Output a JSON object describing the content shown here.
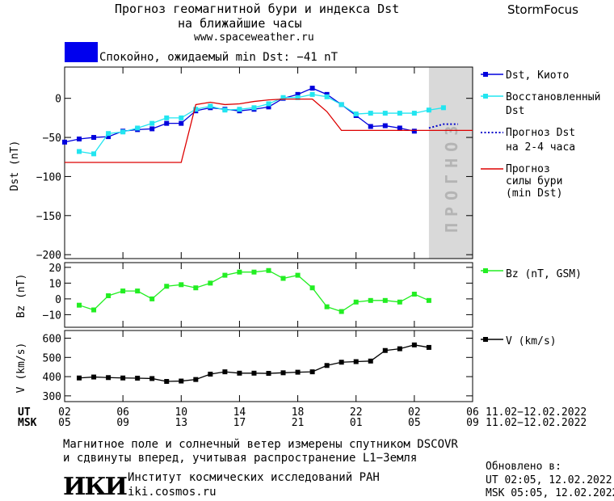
{
  "header": {
    "title_line1": "Прогноз геомагнитной бури и индекса Dst",
    "title_line2": "на ближайшие часы",
    "site": "www.spaceweather.ru",
    "brand": "StormFocus"
  },
  "status": {
    "text": "Спокойно, ожидаемый min Dst: −41 nT",
    "color": "#0000ee"
  },
  "colors": {
    "dst_kyoto": "#0000dd",
    "dst_restored": "#22e5f0",
    "dst_forecast": "#0000cc",
    "storm_forecast": "#dd0000",
    "bz": "#22ee22",
    "v": "#000000",
    "forecast_shade": "#d9d9d9"
  },
  "chart_data": [
    {
      "type": "line",
      "ylabel": "Dst (nT)",
      "ylim": [
        -205,
        40
      ],
      "xlim": [
        2,
        30
      ],
      "yticks": [
        "0",
        "−50",
        "−100",
        "−150",
        "−200"
      ],
      "forecast_region": [
        27,
        30
      ],
      "forecast_label": "ПРОГНОЗ",
      "series": [
        {
          "name": "Dst, Киото",
          "color": "#0000dd",
          "marker": "square",
          "x": [
            2,
            3,
            4,
            5,
            6,
            7,
            8,
            9,
            10,
            11,
            12,
            13,
            14,
            15,
            16,
            17,
            18,
            19,
            20,
            21,
            22,
            23,
            24,
            25,
            26
          ],
          "y": [
            -56,
            -52,
            -50,
            -49,
            -42,
            -40,
            -39,
            -32,
            -32,
            -16,
            -12,
            -14,
            -16,
            -14,
            -11,
            0,
            5,
            13,
            5,
            -8,
            -22,
            -36,
            -35,
            -38,
            -42
          ]
        },
        {
          "name": "Восстановленный Dst",
          "color": "#22e5f0",
          "marker": "square",
          "x": [
            3,
            4,
            5,
            6,
            7,
            8,
            9,
            10,
            11,
            12,
            13,
            14,
            15,
            16,
            17,
            18,
            19,
            20,
            21,
            22,
            23,
            24,
            25,
            26,
            27,
            28
          ],
          "y": [
            -68,
            -71,
            -45,
            -43,
            -38,
            -32,
            -25,
            -25,
            -14,
            -10,
            -15,
            -14,
            -12,
            -7,
            1,
            1,
            5,
            2,
            -8,
            -20,
            -19,
            -19,
            -19,
            -19,
            -15,
            -12
          ]
        },
        {
          "name": "Прогноз Dst на 2-4 часа",
          "color": "#0000cc",
          "style": "dotted",
          "x": [
            27,
            28,
            29
          ],
          "y": [
            -38,
            -33,
            -33
          ]
        },
        {
          "name": "Прогноз силы бури (min Dst)",
          "color": "#dd0000",
          "x": [
            2,
            10,
            11,
            12,
            13,
            14,
            15,
            16,
            17,
            18,
            19,
            20,
            21,
            22,
            23,
            24,
            25,
            26,
            27,
            28,
            29,
            30
          ],
          "y": [
            -82,
            -82,
            -8,
            -5,
            -8,
            -7,
            -4,
            -2,
            -1,
            -1,
            -1,
            -17,
            -41,
            -41,
            -41,
            -41,
            -41,
            -41,
            -41,
            -41,
            -41,
            -41
          ]
        }
      ]
    },
    {
      "type": "line",
      "ylabel": "Bz (nT)",
      "ylim": [
        -18,
        23
      ],
      "yticks": [
        "20",
        "10",
        "0",
        "−10"
      ],
      "series": [
        {
          "name": "Bz (nT, GSM)",
          "color": "#22ee22",
          "marker": "square",
          "x": [
            3,
            4,
            5,
            6,
            7,
            8,
            9,
            10,
            11,
            12,
            13,
            14,
            15,
            16,
            17,
            18,
            19,
            20,
            21,
            22,
            23,
            24,
            25,
            26,
            27,
            28
          ],
          "y": [
            -4,
            -7,
            2,
            5,
            5,
            0,
            8,
            9,
            7,
            10,
            15,
            17,
            17,
            18,
            13,
            15,
            7,
            -5,
            -8,
            -2,
            -1,
            -1,
            -2,
            3,
            -1,
            null
          ]
        }
      ]
    },
    {
      "type": "line",
      "ylabel": "V (km/s)",
      "ylim": [
        270,
        640
      ],
      "yticks": [
        "600",
        "500",
        "400",
        "300"
      ],
      "series": [
        {
          "name": "V (km/s)",
          "color": "#000000",
          "marker": "square",
          "x": [
            3,
            4,
            5,
            6,
            7,
            8,
            9,
            10,
            11,
            12,
            13,
            14,
            15,
            16,
            17,
            18,
            19,
            20,
            21,
            22,
            23,
            24,
            25,
            26,
            27,
            28
          ],
          "y": [
            393,
            398,
            395,
            393,
            392,
            390,
            375,
            377,
            385,
            413,
            425,
            418,
            418,
            417,
            420,
            423,
            425,
            458,
            475,
            478,
            481,
            536,
            545,
            565,
            552,
            null
          ]
        }
      ]
    }
  ],
  "xaxis": {
    "ticks": [
      2,
      6,
      10,
      14,
      18,
      22,
      26,
      30
    ],
    "ut_label": "UT",
    "msk_label": "MSK",
    "ut_ticks": [
      "02",
      "06",
      "10",
      "14",
      "18",
      "22",
      "02",
      "06"
    ],
    "msk_ticks": [
      "05",
      "09",
      "13",
      "17",
      "21",
      "01",
      "05",
      "09"
    ],
    "date_range_ut": "11.02−12.02.2022",
    "date_range_msk": "11.02−12.02.2022"
  },
  "footer": {
    "line1": "Магнитное поле и солнечный ветер измерены спутником DSCOVR",
    "line2": "и сдвинуты вперед, учитывая распространение L1−Земля",
    "logo": "ИКИ",
    "institute": "Институт космических исследований РАН",
    "institute_site": "iki.cosmos.ru",
    "updated_label": "Обновлено в:",
    "updated_ut": "UT   02:05, 12.02.2022",
    "updated_msk": "MSK 05:05, 12.02.2022"
  },
  "legend": {
    "dst_kyoto": "Dst, Киото",
    "restored_1": "Восстановленный",
    "restored_2": "Dst",
    "forecast_1": "Прогноз Dst",
    "forecast_2": "на 2-4 часа",
    "storm_1": "Прогноз",
    "storm_2": "силы бури",
    "storm_3": "(min Dst)",
    "bz": "Bz (nT, GSM)",
    "v": "V (km/s)"
  }
}
